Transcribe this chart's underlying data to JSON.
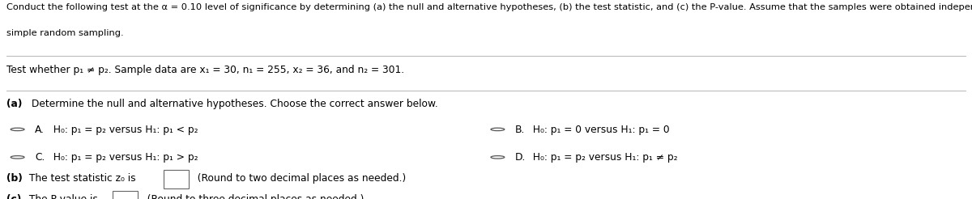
{
  "bg_color": "#ffffff",
  "text_color": "#000000",
  "bold_color": "#000000",
  "radio_color": "#555555",
  "box_edge_color": "#666666",
  "header_line1": "Conduct the following test at the α = 0.10 level of significance by determining (a) the null and alternative hypotheses, (b) the test statistic, and (c) the P-value. Assume that the samples were obtained independently using",
  "header_line2": "simple random sampling.",
  "test_text": "Test whether p₁ ≠ p₂. Sample data are x₁ = 30, n₁ = 255, x₂ = 36, and n₂ = 301.",
  "part_a_label_bold": "(a)",
  "part_a_label_rest": " Determine the null and alternative hypotheses. Choose the correct answer below.",
  "optionA_label": "A.",
  "optionA_text": "  H₀: p₁ = p₂ versus H₁: p₁ < p₂",
  "optionB_label": "B.",
  "optionB_text": "  H₀: p₁ = 0 versus H₁: p₁ = 0",
  "optionC_label": "C.",
  "optionC_text": "  H₀: p₁ = p₂ versus H₁: p₁ > p₂",
  "optionD_label": "D.",
  "optionD_text": "  H₀: p₁ = p₂ versus H₁: p₁ ≠ p₂",
  "part_b_bold": "(b)",
  "part_b_text": " The test statistic z₀ is",
  "part_b_suffix": "  (Round to two decimal places as needed.)",
  "part_c_bold": "(c)",
  "part_c_text": " The P-value is",
  "part_c_suffix": "  (Round to three decimal places as needed.)",
  "fs_header": 8.2,
  "fs_body": 8.8,
  "fs_options": 8.8
}
